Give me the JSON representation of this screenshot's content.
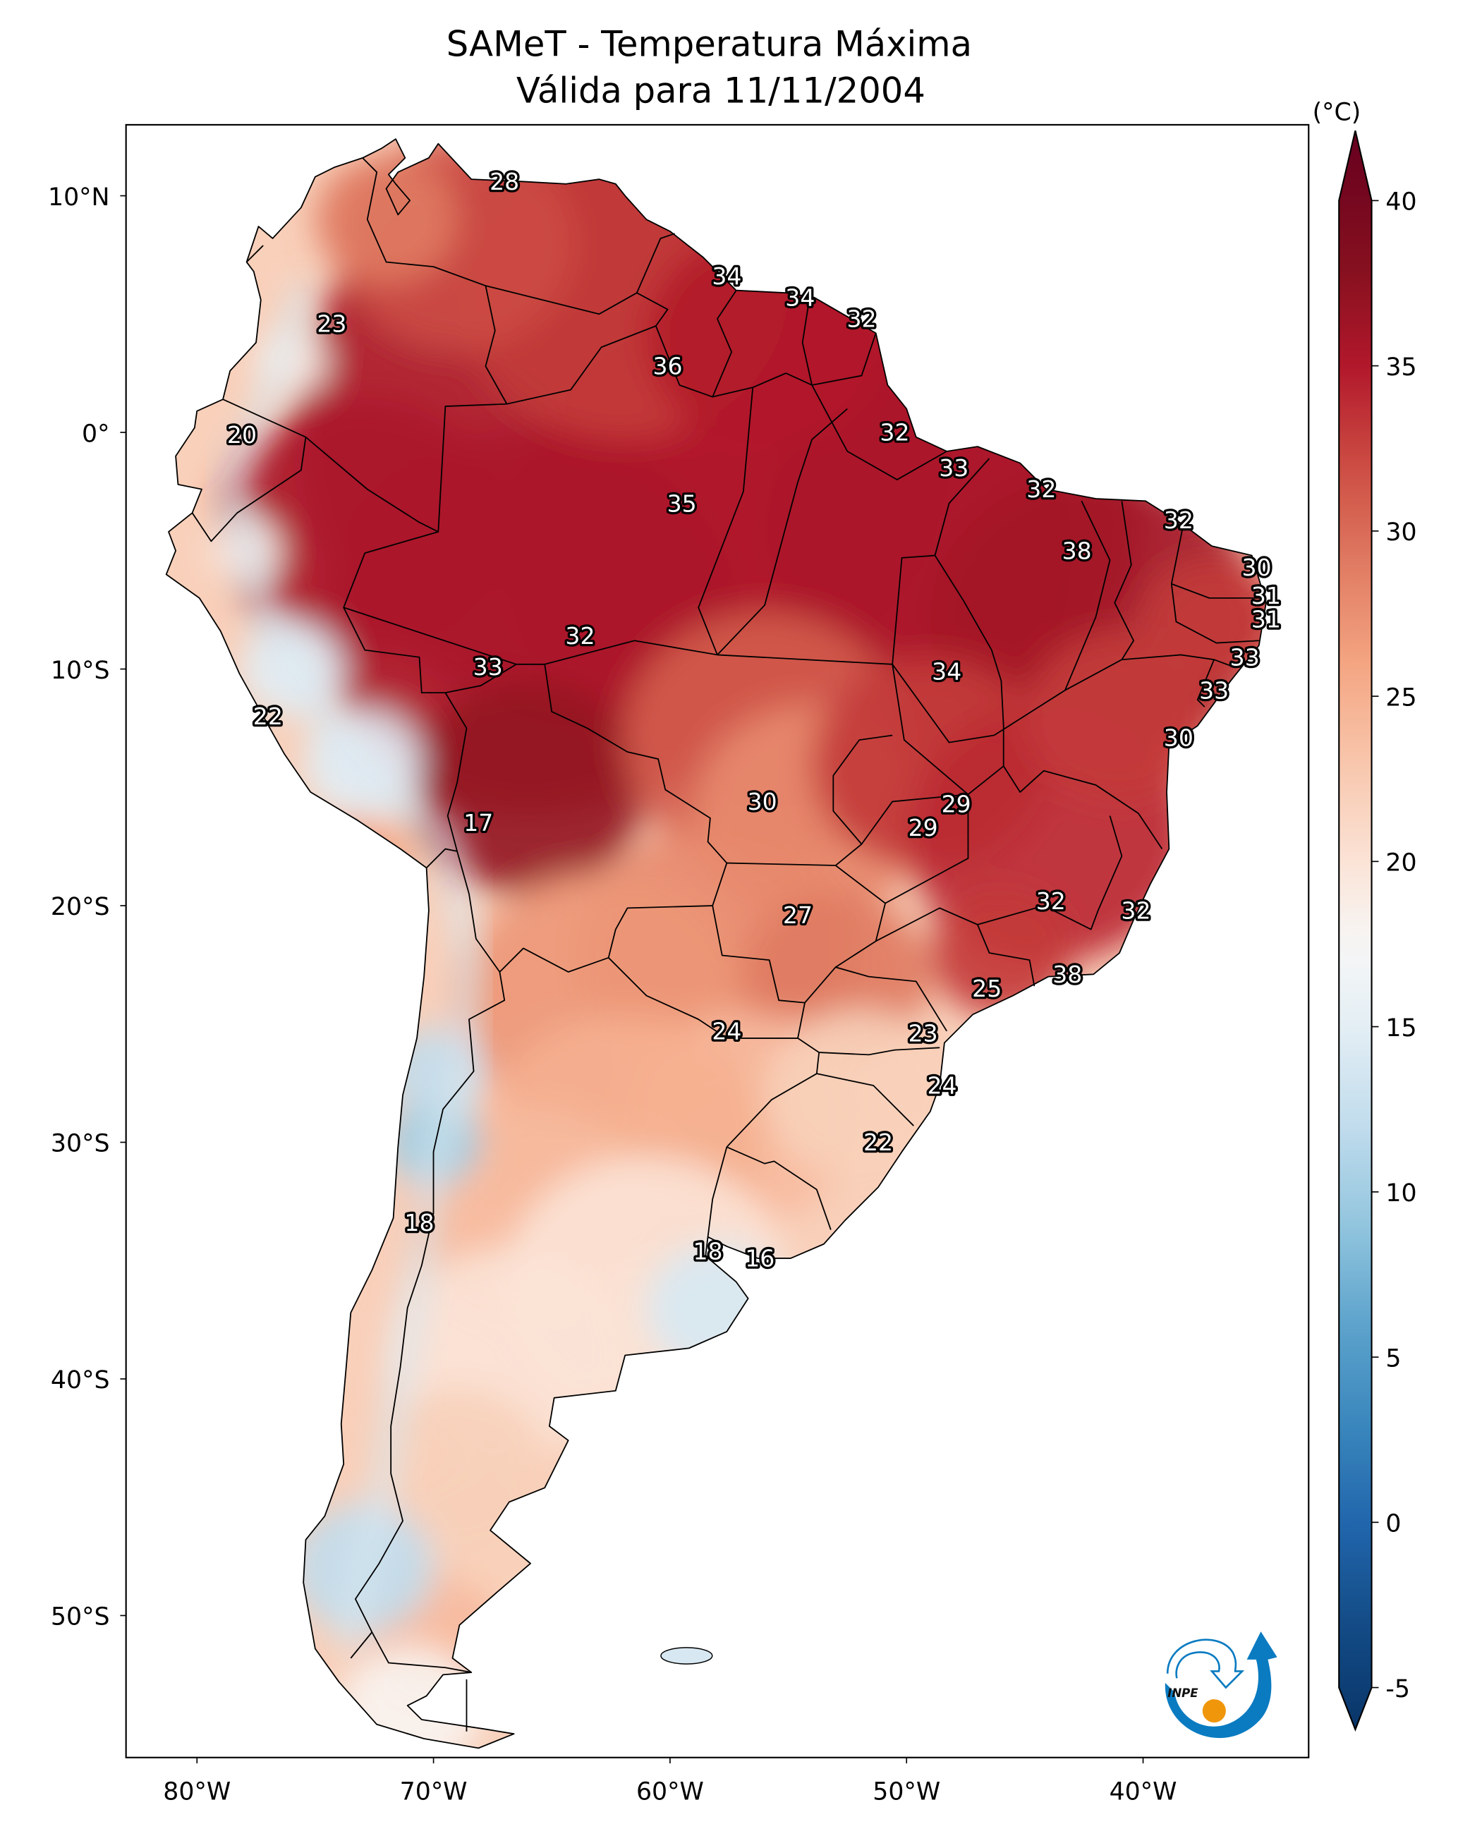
{
  "figure": {
    "title_line1": "SAMeT - Temperatura Máxima",
    "title_line2": "Válida para 11/11/2004",
    "logo_text": "INPE"
  },
  "chart_data": {
    "type": "heatmap",
    "subtype": "geographic map (filled contour)",
    "title": "SAMeT - Temperatura Máxima",
    "subtitle": "Válida para 11/11/2004",
    "variable": "Maximum temperature",
    "units": "(°C)",
    "region": "South America",
    "xlim": [
      -83,
      -33
    ],
    "ylim": [
      -56,
      13
    ],
    "xlabel": "",
    "ylabel": "",
    "x_ticks": [
      {
        "value": -80,
        "label": "80°W"
      },
      {
        "value": -70,
        "label": "70°W"
      },
      {
        "value": -60,
        "label": "60°W"
      },
      {
        "value": -50,
        "label": "50°W"
      },
      {
        "value": -40,
        "label": "40°W"
      }
    ],
    "y_ticks": [
      {
        "value": 10,
        "label": "10°N"
      },
      {
        "value": 0,
        "label": "0°"
      },
      {
        "value": -10,
        "label": "10°S"
      },
      {
        "value": -20,
        "label": "20°S"
      },
      {
        "value": -30,
        "label": "30°S"
      },
      {
        "value": -40,
        "label": "40°S"
      },
      {
        "value": -50,
        "label": "50°S"
      }
    ],
    "colorbar": {
      "label": "(°C)",
      "colormap": "RdBu_r",
      "min": -5,
      "max": 40,
      "extend": "both",
      "ticks": [
        {
          "value": 40,
          "label": "40"
        },
        {
          "value": 35,
          "label": "35"
        },
        {
          "value": 30,
          "label": "30"
        },
        {
          "value": 25,
          "label": "25"
        },
        {
          "value": 20,
          "label": "20"
        },
        {
          "value": 15,
          "label": "15"
        },
        {
          "value": 10,
          "label": "10"
        },
        {
          "value": 5,
          "label": "5"
        },
        {
          "value": 0,
          "label": "0"
        },
        {
          "value": -5,
          "label": "-5"
        }
      ],
      "stops": [
        {
          "value": -7,
          "color": "#053061"
        },
        {
          "value": -3,
          "color": "#144c87"
        },
        {
          "value": 0,
          "color": "#2166ac"
        },
        {
          "value": 3,
          "color": "#3a87bd"
        },
        {
          "value": 6,
          "color": "#5da3cc"
        },
        {
          "value": 9,
          "color": "#92c5de"
        },
        {
          "value": 12,
          "color": "#c1dced"
        },
        {
          "value": 15,
          "color": "#e3eef4"
        },
        {
          "value": 17.5,
          "color": "#f7f7f7"
        },
        {
          "value": 20,
          "color": "#fbe3d6"
        },
        {
          "value": 23,
          "color": "#f8c6ac"
        },
        {
          "value": 26,
          "color": "#f4a582"
        },
        {
          "value": 29,
          "color": "#e07b62"
        },
        {
          "value": 32,
          "color": "#cc4c43"
        },
        {
          "value": 35,
          "color": "#b2182b"
        },
        {
          "value": 38,
          "color": "#85101f"
        },
        {
          "value": 42,
          "color": "#67001f"
        }
      ]
    },
    "station_labels": [
      {
        "lon": -67.0,
        "lat": 10.6,
        "value": 28
      },
      {
        "lon": -74.3,
        "lat": 4.6,
        "value": 23
      },
      {
        "lon": -78.1,
        "lat": -0.1,
        "value": 20
      },
      {
        "lon": -57.6,
        "lat": 6.6,
        "value": 34
      },
      {
        "lon": -54.5,
        "lat": 5.7,
        "value": 34
      },
      {
        "lon": -51.9,
        "lat": 4.8,
        "value": 32
      },
      {
        "lon": -60.1,
        "lat": 2.8,
        "value": 36
      },
      {
        "lon": -50.5,
        "lat": 0.0,
        "value": 32
      },
      {
        "lon": -48.0,
        "lat": -1.5,
        "value": 33
      },
      {
        "lon": -59.5,
        "lat": -3.0,
        "value": 35
      },
      {
        "lon": -44.3,
        "lat": -2.4,
        "value": 32
      },
      {
        "lon": -38.5,
        "lat": -3.7,
        "value": 32
      },
      {
        "lon": -42.8,
        "lat": -5.0,
        "value": 38
      },
      {
        "lon": -35.2,
        "lat": -5.7,
        "value": 30
      },
      {
        "lon": -34.8,
        "lat": -6.9,
        "value": 31
      },
      {
        "lon": -34.8,
        "lat": -7.9,
        "value": 31
      },
      {
        "lon": -63.8,
        "lat": -8.6,
        "value": 32
      },
      {
        "lon": -67.7,
        "lat": -9.9,
        "value": 33
      },
      {
        "lon": -48.3,
        "lat": -10.1,
        "value": 34
      },
      {
        "lon": -35.7,
        "lat": -9.5,
        "value": 33
      },
      {
        "lon": -37.0,
        "lat": -10.9,
        "value": 33
      },
      {
        "lon": -77.0,
        "lat": -12.0,
        "value": 22
      },
      {
        "lon": -38.5,
        "lat": -12.9,
        "value": 30
      },
      {
        "lon": -56.1,
        "lat": -15.6,
        "value": 30
      },
      {
        "lon": -47.9,
        "lat": -15.7,
        "value": 29
      },
      {
        "lon": -49.3,
        "lat": -16.7,
        "value": 29
      },
      {
        "lon": -68.1,
        "lat": -16.5,
        "value": 17
      },
      {
        "lon": -43.9,
        "lat": -19.8,
        "value": 32
      },
      {
        "lon": -40.3,
        "lat": -20.2,
        "value": 32
      },
      {
        "lon": -54.6,
        "lat": -20.4,
        "value": 27
      },
      {
        "lon": -43.2,
        "lat": -22.9,
        "value": 38
      },
      {
        "lon": -46.6,
        "lat": -23.5,
        "value": 25
      },
      {
        "lon": -57.6,
        "lat": -25.3,
        "value": 24
      },
      {
        "lon": -49.3,
        "lat": -25.4,
        "value": 23
      },
      {
        "lon": -48.5,
        "lat": -27.6,
        "value": 24
      },
      {
        "lon": -51.2,
        "lat": -30.0,
        "value": 22
      },
      {
        "lon": -70.6,
        "lat": -33.4,
        "value": 18
      },
      {
        "lon": -58.4,
        "lat": -34.6,
        "value": 18
      },
      {
        "lon": -56.2,
        "lat": -34.9,
        "value": 16
      }
    ],
    "grid": false,
    "legend": "colorbar right"
  }
}
